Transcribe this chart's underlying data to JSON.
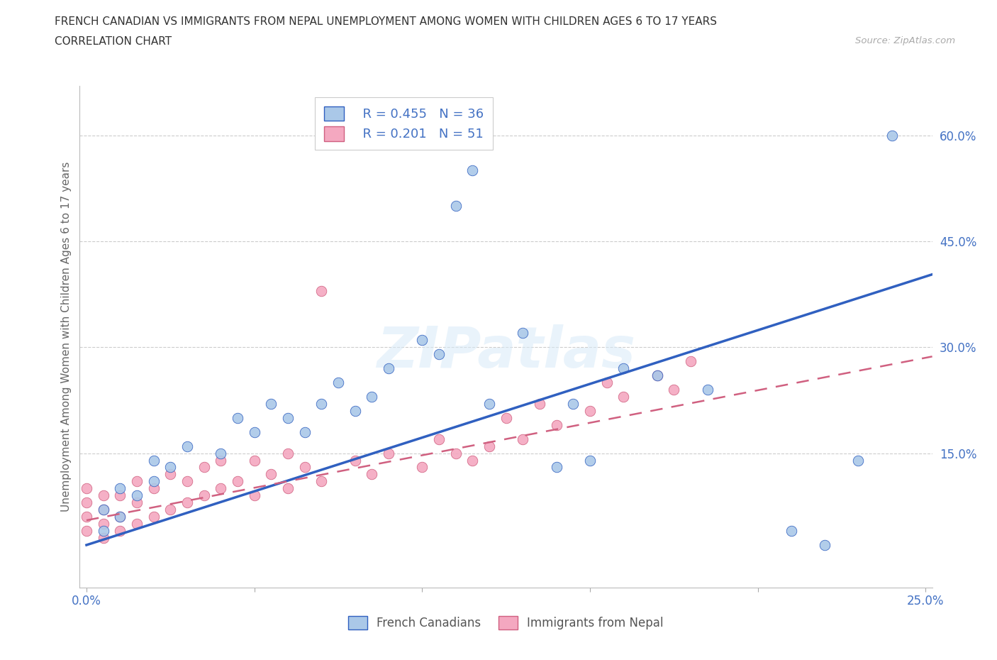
{
  "title_line1": "FRENCH CANADIAN VS IMMIGRANTS FROM NEPAL UNEMPLOYMENT AMONG WOMEN WITH CHILDREN AGES 6 TO 17 YEARS",
  "title_line2": "CORRELATION CHART",
  "source_text": "Source: ZipAtlas.com",
  "ylabel": "Unemployment Among Women with Children Ages 6 to 17 years",
  "xlim": [
    -0.002,
    0.252
  ],
  "ylim": [
    -0.04,
    0.67
  ],
  "x_ticks": [
    0.0,
    0.05,
    0.1,
    0.15,
    0.2,
    0.25
  ],
  "x_tick_labels": [
    "0.0%",
    "",
    "",
    "",
    "",
    "25.0%"
  ],
  "y_ticks": [
    0.0,
    0.15,
    0.3,
    0.45,
    0.6
  ],
  "y_tick_labels": [
    "",
    "15.0%",
    "30.0%",
    "45.0%",
    "60.0%"
  ],
  "legend_R1": "R = 0.455",
  "legend_N1": "N = 36",
  "legend_R2": "R = 0.201",
  "legend_N2": "N = 51",
  "blue_scatter_color": "#aac8e8",
  "pink_scatter_color": "#f4a8c0",
  "trendline_blue": "#3060c0",
  "trendline_pink": "#d06080",
  "french_canadians_x": [
    0.005,
    0.005,
    0.01,
    0.01,
    0.015,
    0.02,
    0.02,
    0.025,
    0.03,
    0.04,
    0.045,
    0.05,
    0.055,
    0.06,
    0.065,
    0.07,
    0.075,
    0.08,
    0.085,
    0.09,
    0.1,
    0.105,
    0.11,
    0.115,
    0.12,
    0.13,
    0.14,
    0.145,
    0.15,
    0.16,
    0.17,
    0.185,
    0.21,
    0.22,
    0.23,
    0.24
  ],
  "french_canadians_y": [
    0.04,
    0.07,
    0.06,
    0.1,
    0.09,
    0.11,
    0.14,
    0.13,
    0.16,
    0.15,
    0.2,
    0.18,
    0.22,
    0.2,
    0.18,
    0.22,
    0.25,
    0.21,
    0.23,
    0.27,
    0.31,
    0.29,
    0.5,
    0.55,
    0.22,
    0.32,
    0.13,
    0.22,
    0.14,
    0.27,
    0.26,
    0.24,
    0.04,
    0.02,
    0.14,
    0.6
  ],
  "nepal_x": [
    0.0,
    0.0,
    0.0,
    0.0,
    0.005,
    0.005,
    0.005,
    0.005,
    0.01,
    0.01,
    0.01,
    0.015,
    0.015,
    0.015,
    0.02,
    0.02,
    0.025,
    0.025,
    0.03,
    0.03,
    0.035,
    0.035,
    0.04,
    0.04,
    0.045,
    0.05,
    0.05,
    0.055,
    0.06,
    0.06,
    0.065,
    0.07,
    0.07,
    0.08,
    0.085,
    0.09,
    0.1,
    0.105,
    0.11,
    0.115,
    0.12,
    0.125,
    0.13,
    0.135,
    0.14,
    0.15,
    0.155,
    0.16,
    0.17,
    0.175,
    0.18
  ],
  "nepal_y": [
    0.04,
    0.06,
    0.08,
    0.1,
    0.03,
    0.05,
    0.07,
    0.09,
    0.04,
    0.06,
    0.09,
    0.05,
    0.08,
    0.11,
    0.06,
    0.1,
    0.07,
    0.12,
    0.08,
    0.11,
    0.09,
    0.13,
    0.1,
    0.14,
    0.11,
    0.09,
    0.14,
    0.12,
    0.1,
    0.15,
    0.13,
    0.11,
    0.38,
    0.14,
    0.12,
    0.15,
    0.13,
    0.17,
    0.15,
    0.14,
    0.16,
    0.2,
    0.17,
    0.22,
    0.19,
    0.21,
    0.25,
    0.23,
    0.26,
    0.24,
    0.28
  ]
}
